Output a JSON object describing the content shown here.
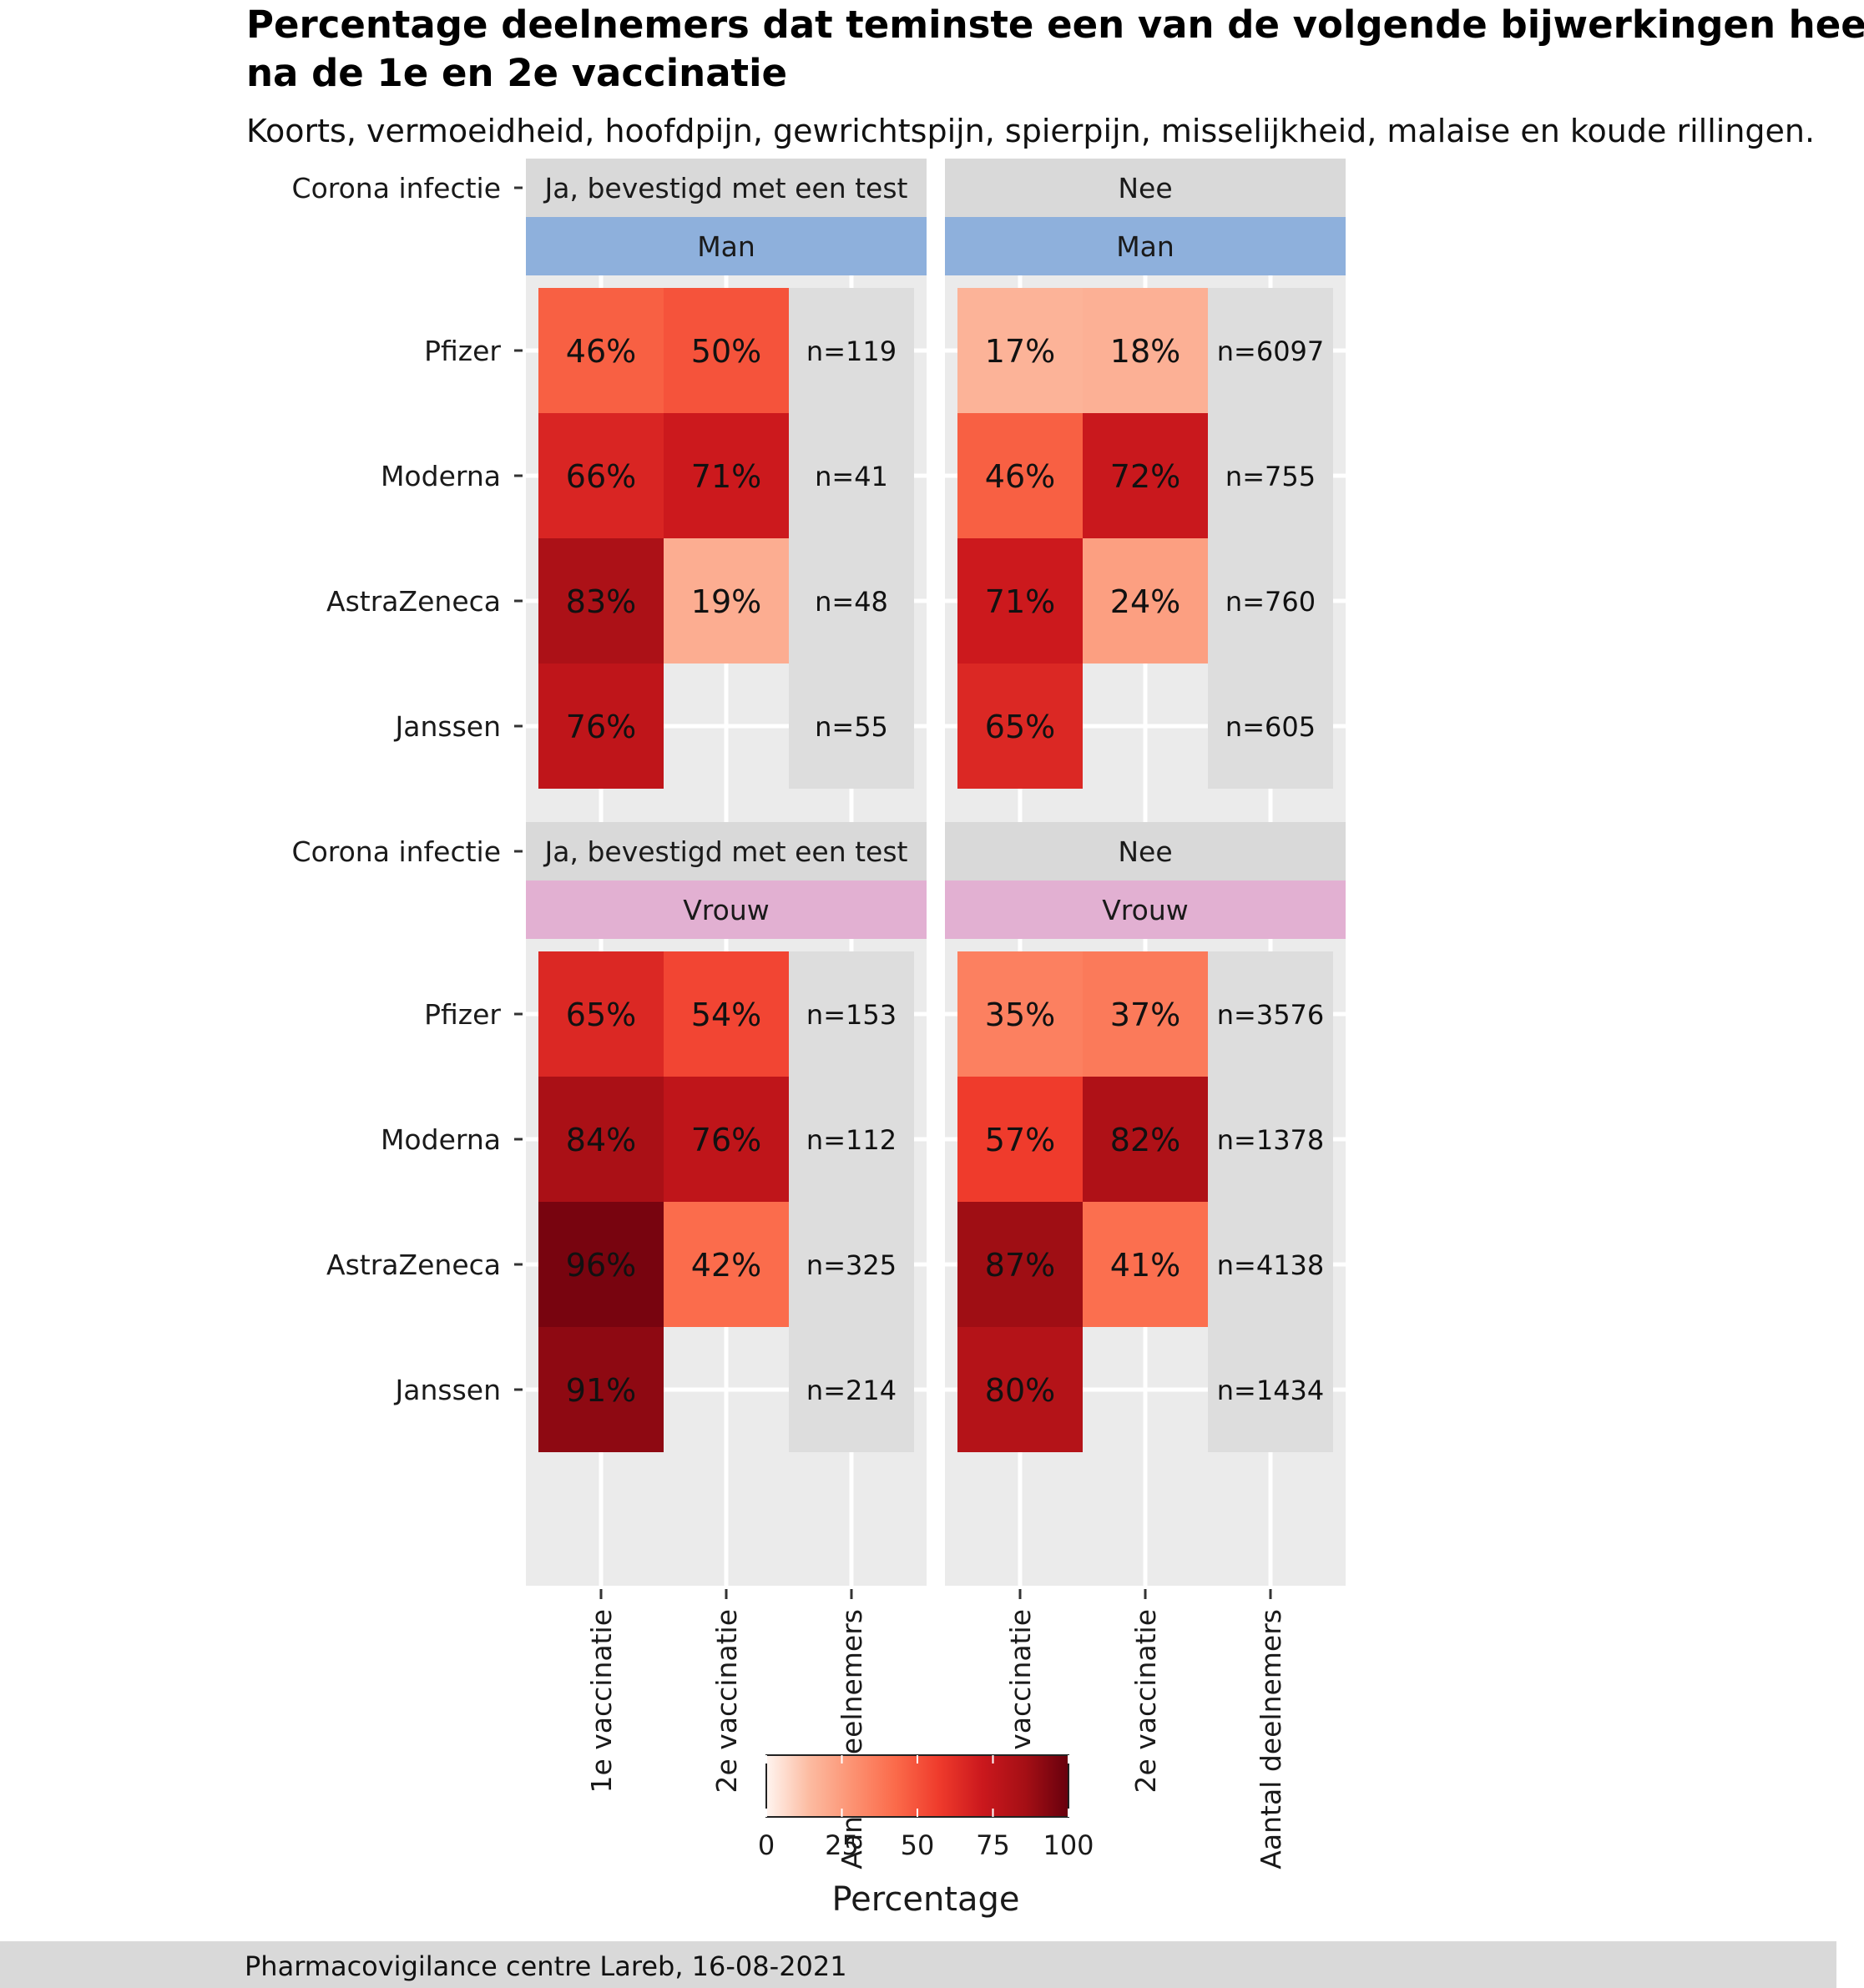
{
  "title_line1": "Percentage deelnemers dat teminste een van de volgende bijwerkingen heeft ervaren",
  "title_line2": "na de 1e en 2e vaccinatie",
  "subtitle": "Koorts, vermoeidheid, hoofdpijn, gewrichtspijn, spierpijn, misselijkheid, malaise en koude rillingen.",
  "caption": "Pharmacovigilance centre Lareb, 16-08-2021",
  "colors": {
    "strip_grey": "#d9d9d9",
    "strip_man": "#8eb0dc",
    "strip_vrouw": "#e2b0d2",
    "panel_bg": "#ebebeb",
    "n_column": "#dddddd",
    "grid": "#ffffff",
    "caption_bar": "#d9d9d9",
    "scale": [
      "#fff5f0",
      "#fcbba1",
      "#fc9272",
      "#fb6a4a",
      "#ef3b2c",
      "#cb181d",
      "#a50f15",
      "#67000d"
    ]
  },
  "chart_data": {
    "type": "heatmap",
    "facet_row_label": "Corona infectie",
    "columns": [
      "1e vaccinatie",
      "2e vaccinatie",
      "Aantal deelnemers"
    ],
    "rows": [
      "Pfizer",
      "Moderna",
      "AstraZeneca",
      "Janssen"
    ],
    "panels": [
      {
        "infection": "Ja, bevestigd met een test",
        "sex": "Man",
        "dose1": [
          46,
          66,
          83,
          76
        ],
        "dose1_labels": [
          "46%",
          "66%",
          "83%",
          "76%"
        ],
        "dose2": [
          50,
          71,
          19,
          null
        ],
        "dose2_labels": [
          "50%",
          "71%",
          "19%",
          ""
        ],
        "n_labels": [
          "n=119",
          "n=41",
          "n=48",
          "n=55"
        ]
      },
      {
        "infection": "Nee",
        "sex": "Man",
        "dose1": [
          17,
          46,
          71,
          65
        ],
        "dose1_labels": [
          "17%",
          "46%",
          "71%",
          "65%"
        ],
        "dose2": [
          18,
          72,
          24,
          null
        ],
        "dose2_labels": [
          "18%",
          "72%",
          "24%",
          ""
        ],
        "n_labels": [
          "n=6097",
          "n=755",
          "n=760",
          "n=605"
        ]
      },
      {
        "infection": "Ja, bevestigd met een test",
        "sex": "Vrouw",
        "dose1": [
          65,
          84,
          96,
          91
        ],
        "dose1_labels": [
          "65%",
          "84%",
          "96%",
          "91%"
        ],
        "dose2": [
          54,
          76,
          42,
          null
        ],
        "dose2_labels": [
          "54%",
          "76%",
          "42%",
          ""
        ],
        "n_labels": [
          "n=153",
          "n=112",
          "n=325",
          "n=214"
        ]
      },
      {
        "infection": "Nee",
        "sex": "Vrouw",
        "dose1": [
          35,
          57,
          87,
          80
        ],
        "dose1_labels": [
          "35%",
          "57%",
          "87%",
          "80%"
        ],
        "dose2": [
          37,
          82,
          41,
          null
        ],
        "dose2_labels": [
          "37%",
          "82%",
          "41%",
          ""
        ],
        "n_labels": [
          "n=3576",
          "n=1378",
          "n=4138",
          "n=1434"
        ]
      }
    ],
    "legend": {
      "title": "Percentage",
      "range": [
        0,
        100
      ],
      "ticks": [
        "0",
        "25",
        "50",
        "75",
        "100"
      ]
    }
  }
}
